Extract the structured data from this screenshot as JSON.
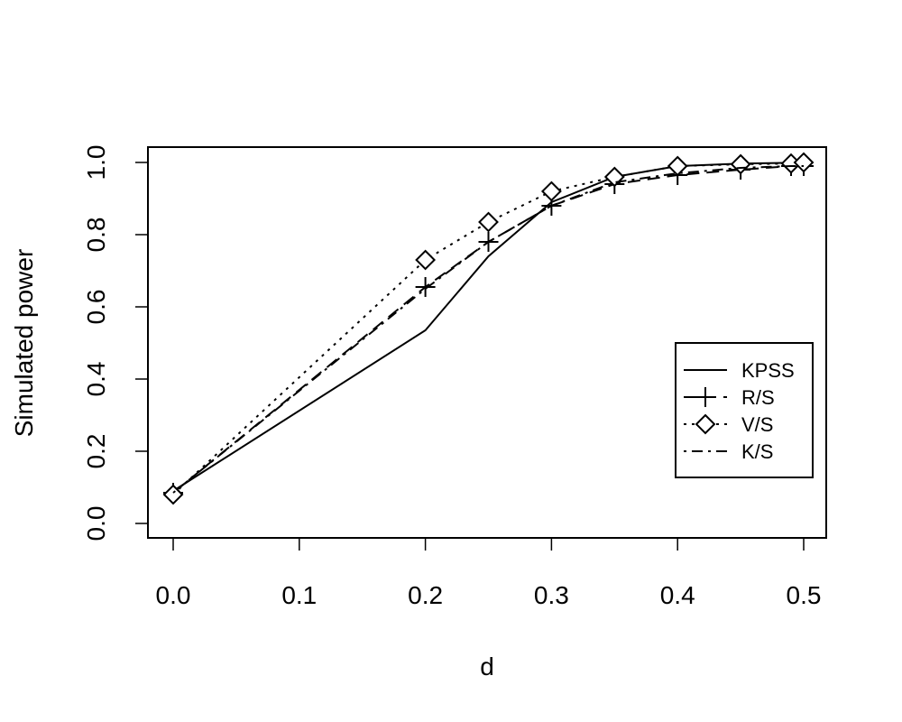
{
  "chart_data": {
    "type": "line",
    "xlabel": "d",
    "ylabel": "Simulated power",
    "xlim": [
      0.0,
      0.5
    ],
    "ylim": [
      0.0,
      1.0
    ],
    "xticks": [
      "0.0",
      "0.1",
      "0.2",
      "0.3",
      "0.4",
      "0.5"
    ],
    "yticks": [
      "0.0",
      "0.2",
      "0.4",
      "0.6",
      "0.8",
      "1.0"
    ],
    "grid": false,
    "legend_position": "right",
    "x": [
      0.0,
      0.2,
      0.25,
      0.3,
      0.35,
      0.4,
      0.45,
      0.49,
      0.5
    ],
    "series": [
      {
        "name": "KPSS",
        "style": "solid",
        "marker": "none",
        "values": [
          0.09,
          0.535,
          0.74,
          0.89,
          0.96,
          0.99,
          0.997,
          0.999,
          1.0
        ]
      },
      {
        "name": "R/S",
        "style": "dashed",
        "marker": "plus",
        "values": [
          0.085,
          0.655,
          0.78,
          0.88,
          0.94,
          0.965,
          0.98,
          0.99,
          0.99
        ]
      },
      {
        "name": "V/S",
        "style": "dotted",
        "marker": "diamond",
        "values": [
          0.08,
          0.73,
          0.835,
          0.92,
          0.96,
          0.99,
          0.995,
          0.997,
          1.0
        ]
      },
      {
        "name": "K/S",
        "style": "dashdot",
        "marker": "none",
        "values": [
          0.085,
          0.65,
          0.78,
          0.88,
          0.945,
          0.97,
          0.985,
          0.99,
          0.99
        ]
      }
    ]
  }
}
